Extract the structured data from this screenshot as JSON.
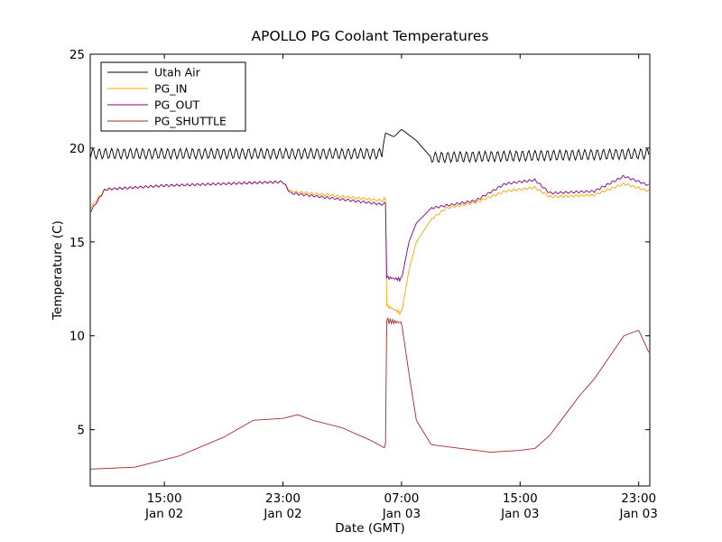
{
  "chart_data": {
    "type": "line",
    "title": "APOLLO PG Coolant Temperatures",
    "xlabel": "Date (GMT)",
    "ylabel": "Temperature (C)",
    "xlim": [
      "Jan 02 10:00",
      "Jan 03 23:45"
    ],
    "ylim": [
      2,
      25
    ],
    "y_ticks": [
      5,
      10,
      15,
      20,
      25
    ],
    "x_ticks": [
      {
        "at": "Jan 02 15:00",
        "time": "15:00",
        "date": "Jan 02"
      },
      {
        "at": "Jan 02 23:00",
        "time": "23:00",
        "date": "Jan 02"
      },
      {
        "at": "Jan 03 07:00",
        "time": "07:00",
        "date": "Jan 03"
      },
      {
        "at": "Jan 03 15:00",
        "time": "15:00",
        "date": "Jan 03"
      },
      {
        "at": "Jan 03 23:00",
        "time": "23:00",
        "date": "Jan 03"
      }
    ],
    "grid": false,
    "legend_position": "top-left",
    "series": [
      {
        "name": "Utah Air",
        "color": "#000000",
        "oscillation": "small oscillations around 19.7 C outside 05:50–09:00 Jan 03",
        "points": [
          [
            "Jan 02 10:00",
            19.7
          ],
          [
            "Jan 02 18:00",
            19.7
          ],
          [
            "Jan 03 05:40",
            19.7
          ],
          [
            "Jan 03 05:55",
            20.8
          ],
          [
            "Jan 03 06:30",
            20.6
          ],
          [
            "Jan 03 07:00",
            21.0
          ],
          [
            "Jan 03 08:00",
            20.4
          ],
          [
            "Jan 03 09:00",
            19.5
          ],
          [
            "Jan 03 23:45",
            19.7
          ]
        ]
      },
      {
        "name": "PG_IN",
        "color": "#ffa500",
        "points": [
          [
            "Jan 02 10:00",
            16.8
          ],
          [
            "Jan 02 11:00",
            17.8
          ],
          [
            "Jan 02 15:00",
            18.0
          ],
          [
            "Jan 02 23:00",
            18.2
          ],
          [
            "Jan 02 23:30",
            17.7
          ],
          [
            "Jan 03 05:45",
            17.2
          ],
          [
            "Jan 03 05:55",
            17.5
          ],
          [
            "Jan 03 06:00",
            11.6
          ],
          [
            "Jan 03 07:00",
            11.2
          ],
          [
            "Jan 03 07:30",
            13.5
          ],
          [
            "Jan 03 08:00",
            15.0
          ],
          [
            "Jan 03 09:00",
            16.2
          ],
          [
            "Jan 03 10:00",
            16.8
          ],
          [
            "Jan 03 12:00",
            17.1
          ],
          [
            "Jan 03 14:00",
            17.7
          ],
          [
            "Jan 03 16:00",
            17.9
          ],
          [
            "Jan 03 17:00",
            17.4
          ],
          [
            "Jan 03 20:00",
            17.5
          ],
          [
            "Jan 03 22:00",
            18.1
          ],
          [
            "Jan 03 23:45",
            17.7
          ]
        ]
      },
      {
        "name": "PG_OUT",
        "color": "#800080",
        "points": [
          [
            "Jan 02 10:00",
            16.6
          ],
          [
            "Jan 02 11:00",
            17.8
          ],
          [
            "Jan 02 15:00",
            18.0
          ],
          [
            "Jan 02 23:00",
            18.2
          ],
          [
            "Jan 02 23:30",
            17.6
          ],
          [
            "Jan 03 05:45",
            17.0
          ],
          [
            "Jan 03 05:55",
            17.2
          ],
          [
            "Jan 03 06:00",
            13.1
          ],
          [
            "Jan 03 07:00",
            13.0
          ],
          [
            "Jan 03 07:30",
            15.0
          ],
          [
            "Jan 03 08:00",
            16.0
          ],
          [
            "Jan 03 09:00",
            16.8
          ],
          [
            "Jan 03 12:00",
            17.2
          ],
          [
            "Jan 03 14:00",
            18.1
          ],
          [
            "Jan 03 16:00",
            18.3
          ],
          [
            "Jan 03 17:00",
            17.6
          ],
          [
            "Jan 03 20:00",
            17.7
          ],
          [
            "Jan 03 22:00",
            18.5
          ],
          [
            "Jan 03 23:45",
            18.0
          ]
        ]
      },
      {
        "name": "PG_SHUTTLE",
        "color": "#a52a2a",
        "points": [
          [
            "Jan 02 10:00",
            2.9
          ],
          [
            "Jan 02 13:00",
            3.0
          ],
          [
            "Jan 02 16:00",
            3.6
          ],
          [
            "Jan 02 19:00",
            4.6
          ],
          [
            "Jan 02 21:00",
            5.5
          ],
          [
            "Jan 02 23:00",
            5.6
          ],
          [
            "Jan 03 00:00",
            5.8
          ],
          [
            "Jan 03 01:00",
            5.5
          ],
          [
            "Jan 03 03:00",
            5.1
          ],
          [
            "Jan 03 05:00",
            4.4
          ],
          [
            "Jan 03 05:55",
            4.0
          ],
          [
            "Jan 03 06:00",
            10.8
          ],
          [
            "Jan 03 07:00",
            10.7
          ],
          [
            "Jan 03 07:30",
            8.0
          ],
          [
            "Jan 03 08:00",
            5.5
          ],
          [
            "Jan 03 09:00",
            4.2
          ],
          [
            "Jan 03 11:00",
            4.0
          ],
          [
            "Jan 03 13:00",
            3.8
          ],
          [
            "Jan 03 15:00",
            3.9
          ],
          [
            "Jan 03 16:00",
            4.0
          ],
          [
            "Jan 03 17:00",
            4.7
          ],
          [
            "Jan 03 19:00",
            6.8
          ],
          [
            "Jan 03 20:00",
            7.7
          ],
          [
            "Jan 03 22:00",
            10.0
          ],
          [
            "Jan 03 23:00",
            10.3
          ],
          [
            "Jan 03 23:45",
            9.0
          ]
        ]
      }
    ]
  }
}
